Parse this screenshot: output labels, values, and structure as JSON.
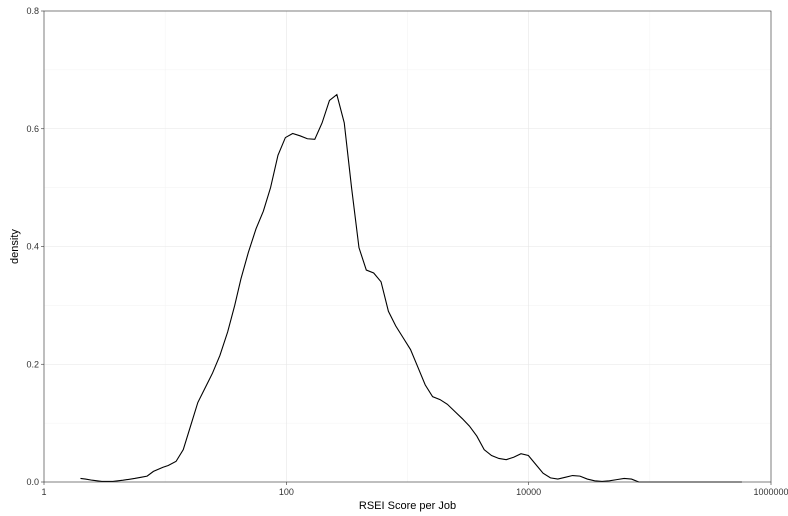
{
  "chart_data": {
    "type": "line",
    "subtype": "density",
    "title": "",
    "xlabel": "RSEI Score per Job",
    "ylabel": "density",
    "x_scale": "log10",
    "xlim": [
      1,
      1000000
    ],
    "ylim": [
      0,
      0.8
    ],
    "x_ticks": [
      {
        "value": 1,
        "label": "1"
      },
      {
        "value": 100,
        "label": "100"
      },
      {
        "value": 10000,
        "label": "10000"
      },
      {
        "value": 1000000,
        "label": "1000000"
      }
    ],
    "y_ticks": [
      {
        "value": 0,
        "label": "0.0"
      },
      {
        "value": 0.2,
        "label": "0.2"
      },
      {
        "value": 0.4,
        "label": "0.4"
      },
      {
        "value": 0.6,
        "label": "0.6"
      },
      {
        "value": 0.8,
        "label": "0.8"
      }
    ],
    "grid": true,
    "legend": "none",
    "line_color": "#000000",
    "series": [
      {
        "x": [
          2.0,
          2.2,
          2.5,
          3.0,
          3.7,
          4.5,
          5.6,
          6.3,
          7.1,
          8.0,
          9.6,
          10.6,
          12.3,
          14.1,
          16.2,
          18.6,
          21.4,
          24.6,
          28.3,
          32.8,
          37.5,
          42.2,
          48.6,
          56.2,
          64.6,
          74.1,
          85.3,
          98.2,
          112.8,
          129.7,
          149.2,
          171.7,
          197.3,
          226.9,
          261.2,
          300.6,
          345.4,
          397.7,
          457.1,
          526.0,
          605.1,
          695.6,
          800.3,
          920.4,
          1059,
          1218,
          1400,
          1611,
          1855,
          2133,
          2453,
          2822,
          3245,
          3733,
          4294,
          4938,
          5681,
          6533,
          7514,
          8643,
          9943,
          11436,
          13152,
          15134,
          17403,
          20016,
          23037,
          26499,
          30466,
          35035,
          40316,
          46386,
          53327,
          61364,
          70572,
          81167,
          93326,
          107350,
          123442,
          142020,
          163310,
          187820,
          216075,
          248515,
          285815,
          328812,
          378210,
          435007,
          500333,
          575440
        ],
        "y": [
          0.006,
          0.005,
          0.003,
          0.001,
          0.001,
          0.003,
          0.006,
          0.008,
          0.01,
          0.018,
          0.025,
          0.028,
          0.035,
          0.055,
          0.095,
          0.135,
          0.16,
          0.185,
          0.215,
          0.255,
          0.3,
          0.345,
          0.39,
          0.43,
          0.46,
          0.5,
          0.555,
          0.585,
          0.592,
          0.588,
          0.583,
          0.582,
          0.61,
          0.648,
          0.658,
          0.61,
          0.5,
          0.398,
          0.36,
          0.355,
          0.34,
          0.29,
          0.265,
          0.245,
          0.225,
          0.195,
          0.165,
          0.145,
          0.14,
          0.132,
          0.12,
          0.108,
          0.095,
          0.078,
          0.055,
          0.045,
          0.04,
          0.038,
          0.042,
          0.048,
          0.045,
          0.03,
          0.015,
          0.007,
          0.005,
          0.008,
          0.011,
          0.01,
          0.005,
          0.002,
          0.001,
          0.002,
          0.004,
          0.006,
          0.005,
          0.0,
          0.0,
          0.0,
          0.0,
          0.0,
          0.0,
          0.0,
          0.0,
          0.0,
          0.0,
          0.0,
          0.0,
          0.0,
          0.0,
          0.0
        ]
      }
    ]
  }
}
